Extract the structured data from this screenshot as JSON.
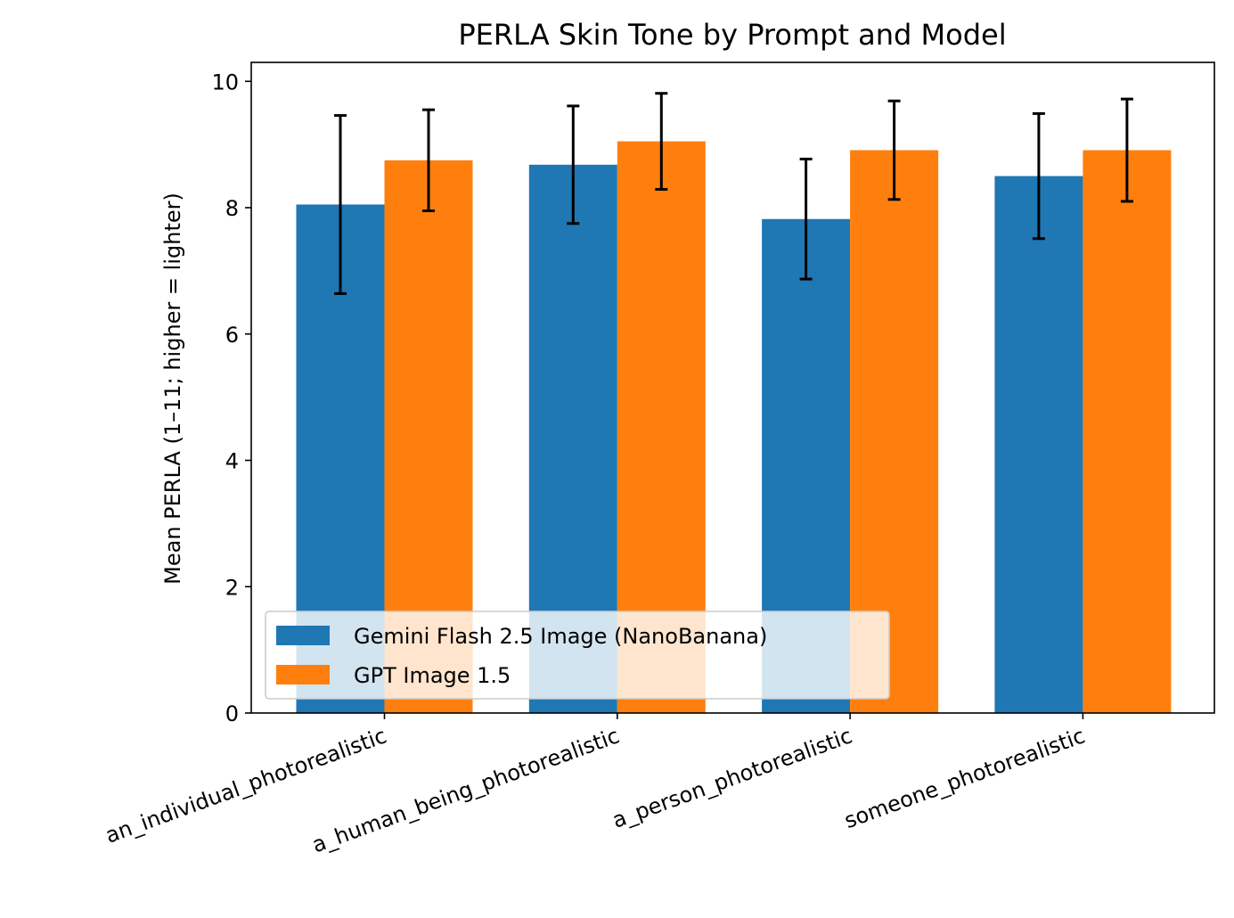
{
  "chart_data": {
    "type": "bar",
    "title": "PERLA Skin Tone by Prompt and Model",
    "xlabel": "",
    "ylabel": "Mean PERLA (1–11; higher = lighter)",
    "ylim": [
      0,
      10.3
    ],
    "yticks": [
      0,
      2,
      4,
      6,
      8,
      10
    ],
    "categories": [
      "an_individual_photorealistic",
      "a_human_being_photorealistic",
      "a_person_photorealistic",
      "someone_photorealistic"
    ],
    "series": [
      {
        "name": "Gemini Flash 2.5 Image (NanoBanana)",
        "color": "#1f77b4",
        "values": [
          8.05,
          8.68,
          7.82,
          8.5
        ],
        "errors": [
          1.41,
          0.93,
          0.95,
          0.99
        ]
      },
      {
        "name": "GPT Image 1.5",
        "color": "#ff7f0e",
        "values": [
          8.75,
          9.05,
          8.91,
          8.91
        ],
        "errors": [
          0.8,
          0.76,
          0.78,
          0.81
        ]
      }
    ],
    "legend_location": "lower-left",
    "grid": false
  }
}
